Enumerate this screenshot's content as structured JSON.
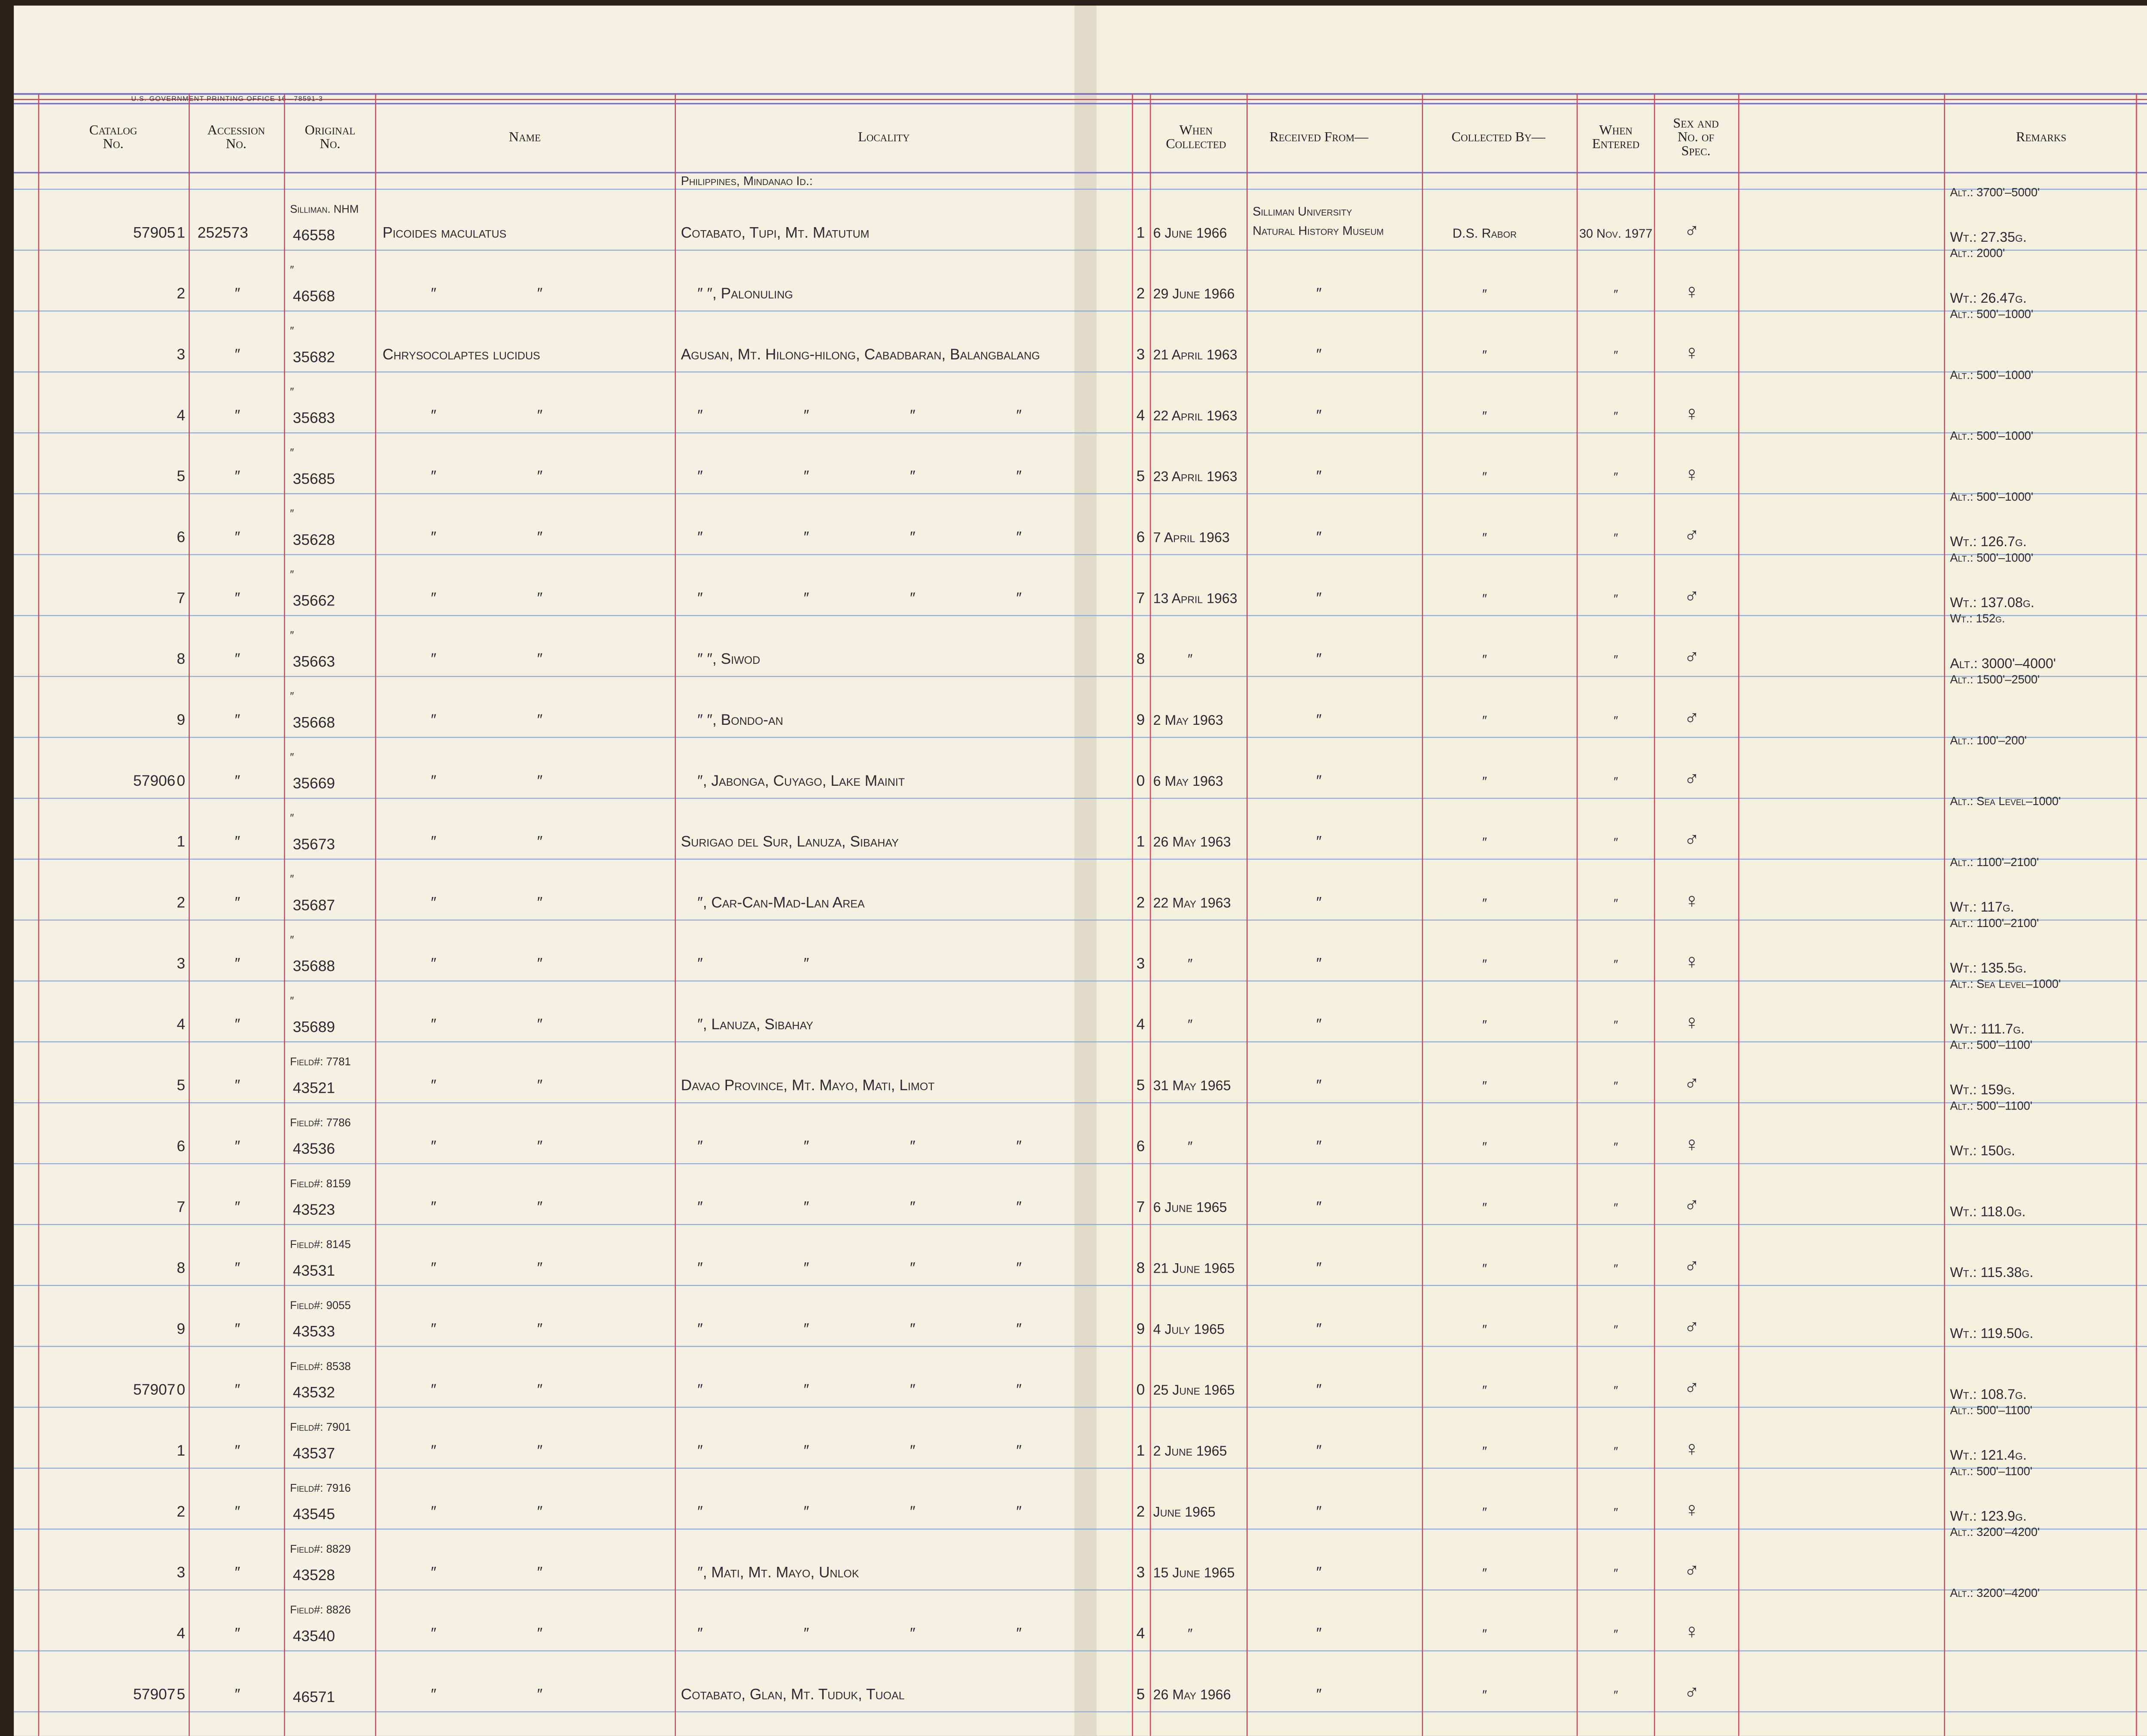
{
  "header": {
    "print_note": "U.S. GOVERNMENT PRINTING OFFICE 16—78591-3",
    "columns": [
      [
        "Catalog",
        "No."
      ],
      [
        "Accession",
        "No."
      ],
      [
        "Original",
        "No."
      ],
      [
        "Name"
      ],
      [
        "Locality"
      ],
      [
        "When",
        "Collected"
      ],
      [
        "Received From—"
      ],
      [
        "Collected By—"
      ],
      [
        "When",
        "Entered"
      ],
      [
        "Sex and",
        "No. of",
        "Spec."
      ],
      [
        "Remarks"
      ]
    ]
  },
  "locality_heading": "Philippines, Mindanao Id.:",
  "rows": [
    {
      "catalog": "57905",
      "digit": "1",
      "accession": "252573",
      "original_top": "Silliman. NHM",
      "original": "46558",
      "name": "Picoides maculatus",
      "locality": "Cotabato, Tupi, Mt. Matutum",
      "collected": "6 June 1966",
      "received": [
        "Silliman University",
        "Natural History Museum"
      ],
      "collected_by": "D.S. Rabor",
      "entered": "30 Nov. 1977",
      "sex": "♂",
      "remarks_top": "Alt.: 3700'–5000'",
      "remarks": "Wt.: 27.35g."
    },
    {
      "digit": "2",
      "accession": "″",
      "original_top": "″",
      "original": "46568",
      "name": "″ ″",
      "locality": "″ ″, Palonuling",
      "collected": "29 June 1966",
      "received": "″",
      "collected_by": "″",
      "entered": "″",
      "sex": "♀",
      "remarks_top": "Alt.: 2000'",
      "remarks": "Wt.: 26.47g."
    },
    {
      "digit": "3",
      "accession": "″",
      "original_top": "″",
      "original": "35682",
      "name": "Chrysocolaptes lucidus",
      "locality": "Agusan, Mt. Hilong-hilong, Cabadbaran, Balangbalang",
      "collected": "21 April 1963",
      "received": "″",
      "collected_by": "″",
      "entered": "″",
      "sex": "♀",
      "remarks_top": "Alt.: 500'–1000'"
    },
    {
      "digit": "4",
      "accession": "″",
      "original_top": "″",
      "original": "35683",
      "name": "″ ″",
      "locality": "″ ″ ″ ″",
      "collected": "22 April 1963",
      "received": "″",
      "collected_by": "″",
      "entered": "″",
      "sex": "♀",
      "remarks_top": "Alt.: 500'–1000'"
    },
    {
      "digit": "5",
      "accession": "″",
      "original_top": "″",
      "original": "35685",
      "name": "″ ″",
      "locality": "″ ″ ″ ″",
      "collected": "23 April 1963",
      "received": "″",
      "collected_by": "″",
      "entered": "″",
      "sex": "♀",
      "remarks_top": "Alt.: 500'–1000'"
    },
    {
      "digit": "6",
      "accession": "″",
      "original_top": "″",
      "original": "35628",
      "name": "″ ″",
      "locality": "″ ″ ″ ″",
      "collected": "7 April 1963",
      "received": "″",
      "collected_by": "″",
      "entered": "″",
      "sex": "♂",
      "remarks_top": "Alt.: 500'–1000'",
      "remarks": "Wt.: 126.7g."
    },
    {
      "digit": "7",
      "accession": "″",
      "original_top": "″",
      "original": "35662",
      "name": "″ ″",
      "locality": "″ ″ ″ ″",
      "collected": "13 April 1963",
      "received": "″",
      "collected_by": "″",
      "entered": "″",
      "sex": "♂",
      "remarks_top": "Alt.: 500'–1000'",
      "remarks": "Wt.: 137.08g."
    },
    {
      "digit": "8",
      "accession": "″",
      "original_top": "″",
      "original": "35663",
      "name": "″ ″",
      "locality": "″ ″, Siwod",
      "collected": "″",
      "received": "″",
      "collected_by": "″",
      "entered": "″",
      "sex": "♂",
      "remarks_top": "Wt.: 152g.",
      "remarks": "Alt.: 3000'–4000'"
    },
    {
      "digit": "9",
      "accession": "″",
      "original_top": "″",
      "original": "35668",
      "name": "″ ″",
      "locality": "″ ″, Bondo-an",
      "collected": "2 May 1963",
      "received": "″",
      "collected_by": "″",
      "entered": "″",
      "sex": "♂",
      "remarks_top": "Alt.: 1500'–2500'"
    },
    {
      "catalog": "57906",
      "digit": "0",
      "accession": "″",
      "original_top": "″",
      "original": "35669",
      "name": "″ ″",
      "locality": "″, Jabonga, Cuyago, Lake Mainit",
      "collected": "6 May 1963",
      "received": "″",
      "collected_by": "″",
      "entered": "″",
      "sex": "♂",
      "remarks_top": "Alt.: 100'–200'"
    },
    {
      "digit": "1",
      "accession": "″",
      "original_top": "″",
      "original": "35673",
      "name": "″ ″",
      "locality": "Surigao del Sur, Lanuza, Sibahay",
      "collected": "26 May 1963",
      "received": "″",
      "collected_by": "″",
      "entered": "″",
      "sex": "♂",
      "remarks_top": "Alt.: Sea Level–1000'"
    },
    {
      "digit": "2",
      "accession": "″",
      "original_top": "″",
      "original": "35687",
      "name": "″ ″",
      "locality": "″, Car-Can-Mad-Lan Area",
      "collected": "22 May 1963",
      "received": "″",
      "collected_by": "″",
      "entered": "″",
      "sex": "♀",
      "remarks_top": "Alt.: 1100'–2100'",
      "remarks": "Wt.: 117g."
    },
    {
      "digit": "3",
      "accession": "″",
      "original_top": "″",
      "original": "35688",
      "name": "″ ″",
      "locality": "″ ″",
      "collected": "″",
      "received": "″",
      "collected_by": "″",
      "entered": "″",
      "sex": "♀",
      "remarks_top": "Alt.: 1100'–2100'",
      "remarks": "Wt.: 135.5g."
    },
    {
      "digit": "4",
      "accession": "″",
      "original_top": "″",
      "original": "35689",
      "name": "″ ″",
      "locality": "″, Lanuza, Sibahay",
      "collected": "″",
      "received": "″",
      "collected_by": "″",
      "entered": "″",
      "sex": "♀",
      "remarks_top": "Alt.: Sea Level–1000'",
      "remarks": "Wt.: 111.7g."
    },
    {
      "digit": "5",
      "accession": "″",
      "original_top": "Field#: 7781",
      "original": "43521",
      "name": "″ ″",
      "locality": "Davao Province, Mt. Mayo, Mati, Limot",
      "collected": "31 May 1965",
      "received": "″",
      "collected_by": "″",
      "entered": "″",
      "sex": "♂",
      "remarks_top": "Alt.: 500'–1100'",
      "remarks": "Wt.: 159g."
    },
    {
      "digit": "6",
      "accession": "″",
      "original_top": "Field#: 7786",
      "original": "43536",
      "name": "″ ″",
      "locality": "″ ″ ″ ″",
      "collected": "″",
      "received": "″",
      "collected_by": "″",
      "entered": "″",
      "sex": "♀",
      "remarks_top": "Alt.: 500'–1100'",
      "remarks": "Wt.: 150g."
    },
    {
      "digit": "7",
      "accession": "″",
      "original_top": "Field#: 8159",
      "original": "43523",
      "name": "″ ″",
      "locality": "″ ″ ″ ″",
      "collected": "6 June 1965",
      "received": "″",
      "collected_by": "″",
      "entered": "″",
      "sex": "♂",
      "remarks": "Wt.: 118.0g."
    },
    {
      "digit": "8",
      "accession": "″",
      "original_top": "Field#: 8145",
      "original": "43531",
      "name": "″ ″",
      "locality": "″ ″ ″ ″",
      "collected": "21 June 1965",
      "received": "″",
      "collected_by": "″",
      "entered": "″",
      "sex": "♂",
      "remarks": "Wt.: 115.38g."
    },
    {
      "digit": "9",
      "accession": "″",
      "original_top": "Field#: 9055",
      "original": "43533",
      "name": "″ ″",
      "locality": "″ ″ ″ ″",
      "collected": "4 July 1965",
      "received": "″",
      "collected_by": "″",
      "entered": "″",
      "sex": "♂",
      "remarks": "Wt.: 119.50g."
    },
    {
      "catalog": "57907",
      "digit": "0",
      "accession": "″",
      "original_top": "Field#: 8538",
      "original": "43532",
      "name": "″ ″",
      "locality": "″ ″ ″ ″",
      "collected": "25 June 1965",
      "received": "″",
      "collected_by": "″",
      "entered": "″",
      "sex": "♂",
      "remarks": "Wt.: 108.7g."
    },
    {
      "digit": "1",
      "accession": "″",
      "original_top": "Field#: 7901",
      "original": "43537",
      "name": "″ ″",
      "locality": "″ ″ ″ ″",
      "collected": "2 June 1965",
      "received": "″",
      "collected_by": "″",
      "entered": "″",
      "sex": "♀",
      "remarks_top": "Alt.: 500'–1100'",
      "remarks": "Wt.: 121.4g."
    },
    {
      "digit": "2",
      "accession": "″",
      "original_top": "Field#: 7916",
      "original": "43545",
      "name": "″ ″",
      "locality": "″ ″ ″ ″",
      "collected": "June 1965",
      "received": "″",
      "collected_by": "″",
      "entered": "″",
      "sex": "♀",
      "remarks_top": "Alt.: 500'–1100'",
      "remarks": "Wt.: 123.9g."
    },
    {
      "digit": "3",
      "accession": "″",
      "original_top": "Field#: 8829",
      "original": "43528",
      "name": "″ ″",
      "locality": "″, Mati, Mt. Mayo, Unlok",
      "collected": "15 June 1965",
      "received": "″",
      "collected_by": "″",
      "entered": "″",
      "sex": "♂",
      "remarks_top": "Alt.: 3200'–4200'"
    },
    {
      "digit": "4",
      "accession": "″",
      "original_top": "Field#: 8826",
      "original": "43540",
      "name": "″ ″",
      "locality": "″ ″ ″ ″",
      "collected": "″",
      "received": "″",
      "collected_by": "″",
      "entered": "″",
      "sex": "♀",
      "remarks_top": "Alt.: 3200'–4200'"
    },
    {
      "catalog": "57907",
      "digit": "5",
      "accession": "″",
      "original": "46571",
      "name": "″ ″",
      "locality": "Cotabato, Glan, Mt. Tuduk, Tuoal",
      "collected": "26 May 1966",
      "received": "″",
      "collected_by": "″",
      "entered": "″",
      "sex": "♂"
    }
  ]
}
